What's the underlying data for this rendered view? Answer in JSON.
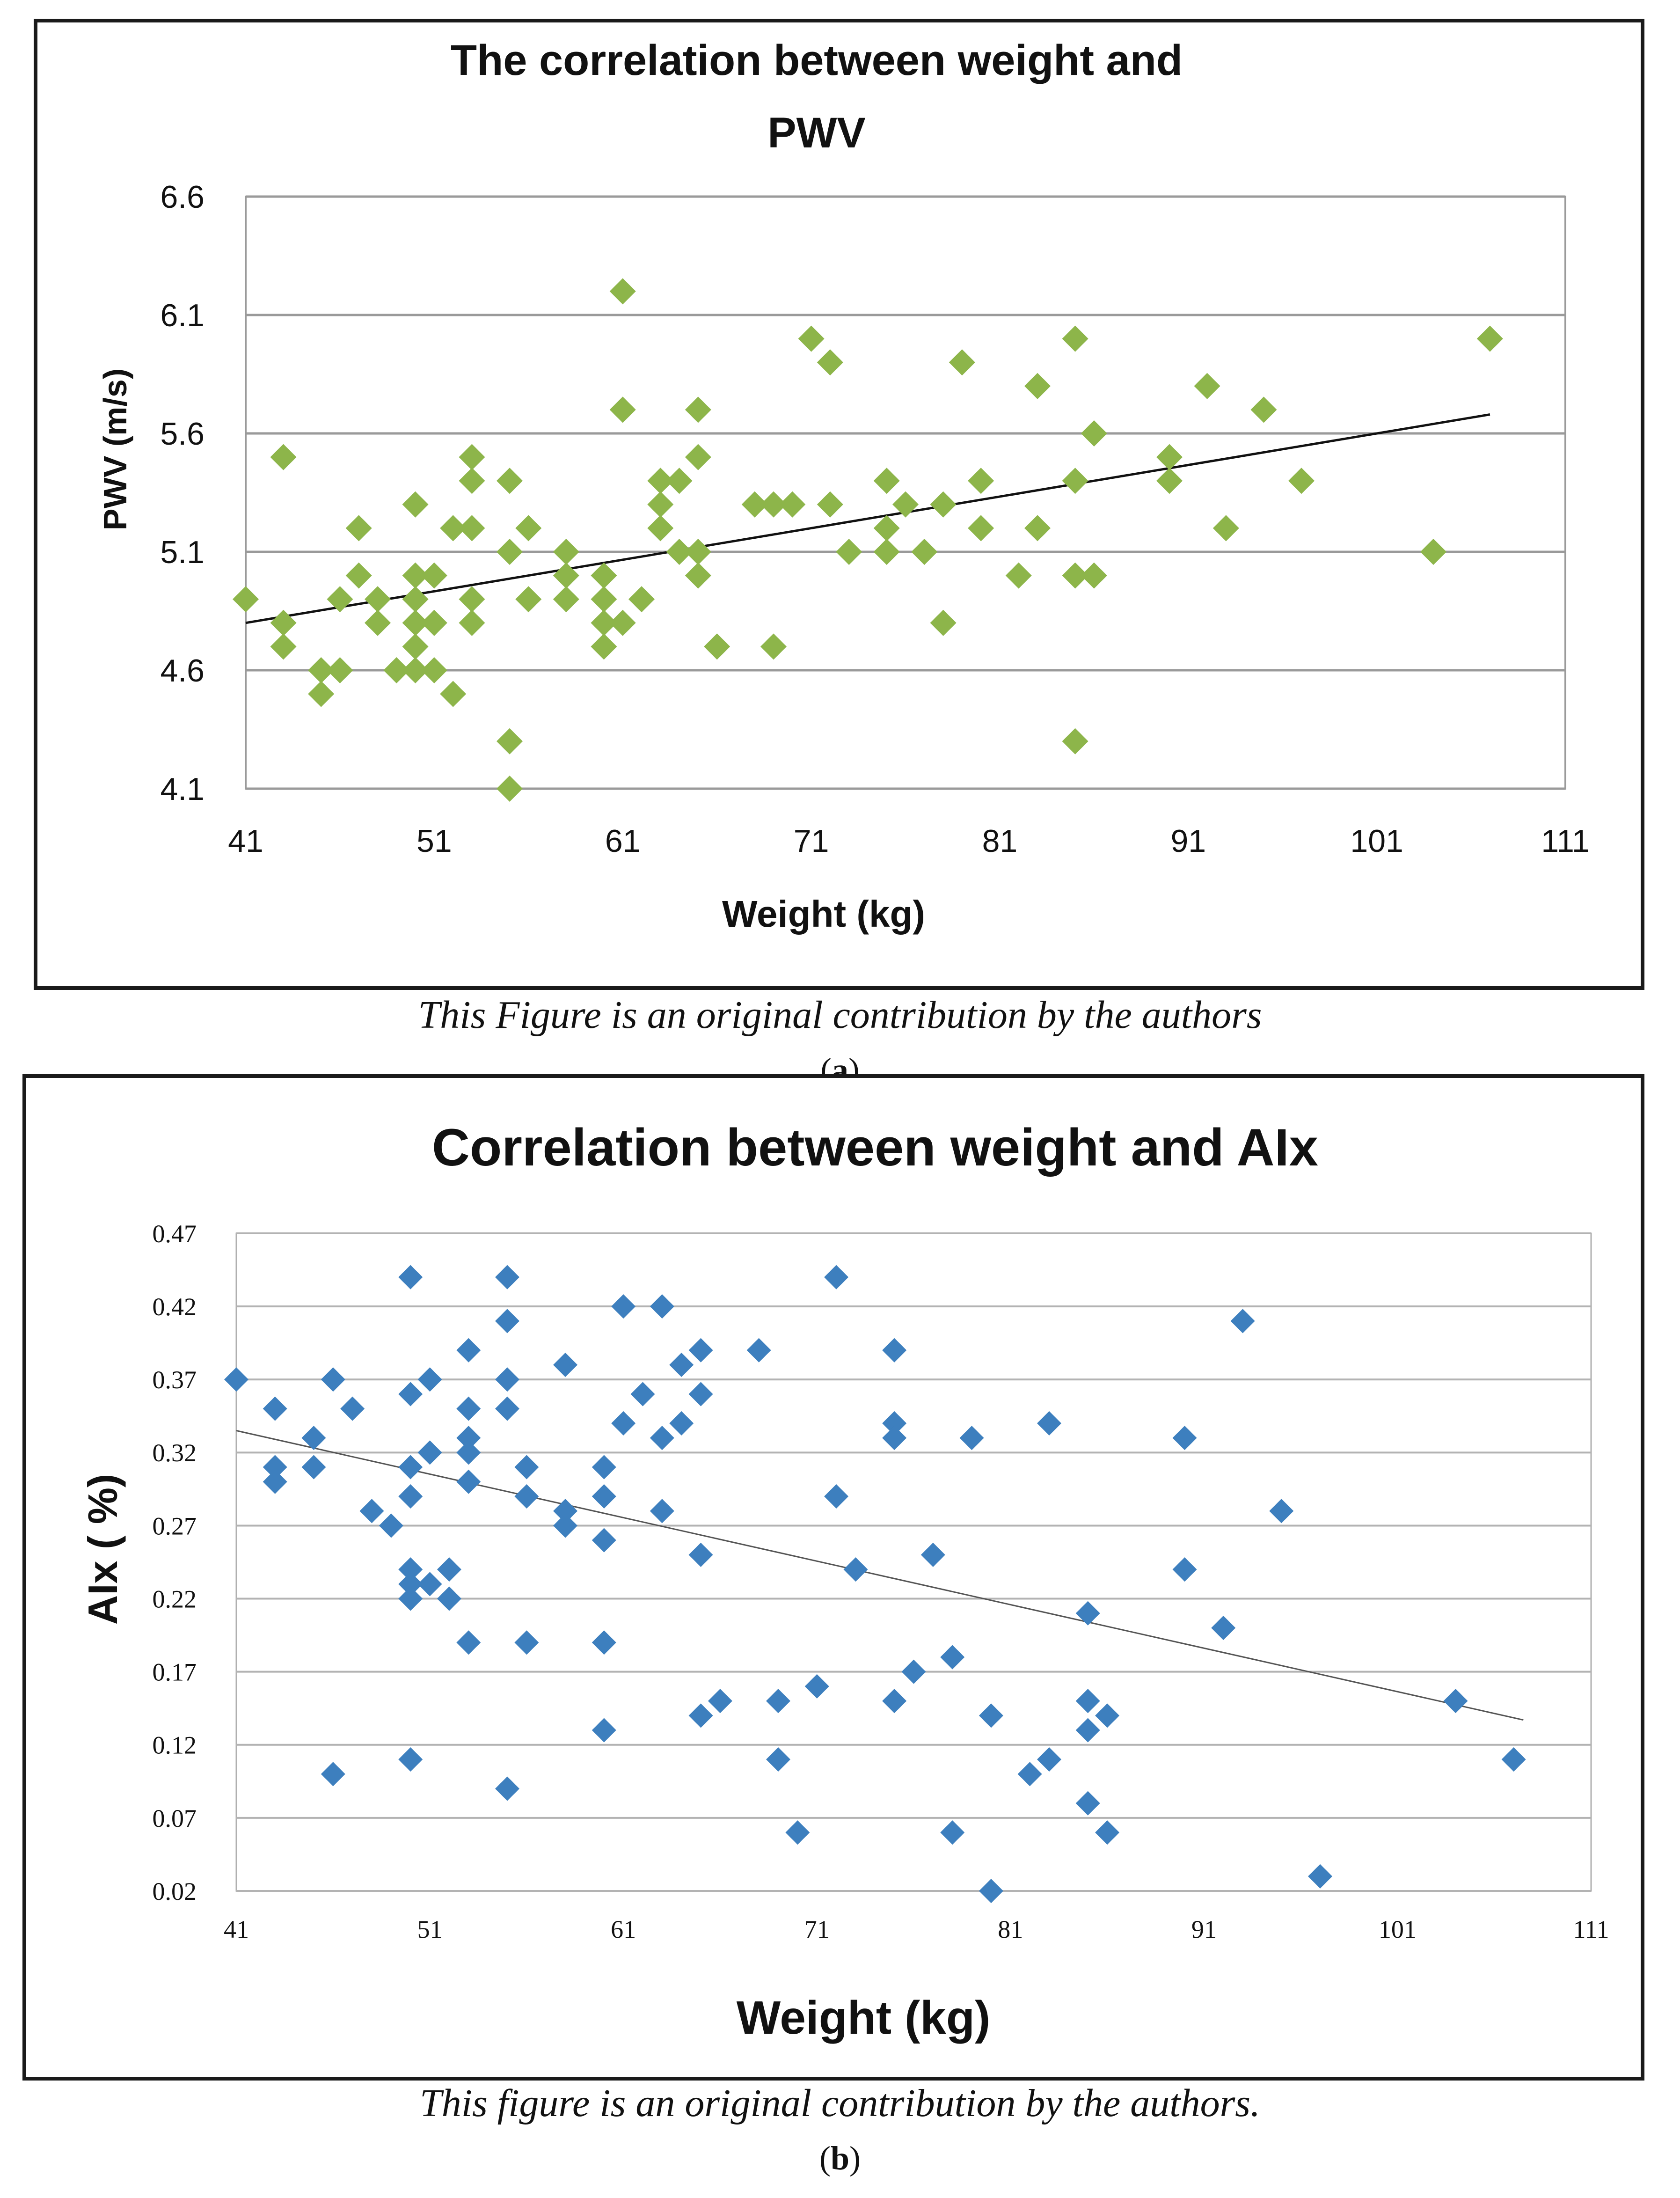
{
  "chart_data": [
    {
      "type": "scatter",
      "title_line1": "The correlation between weight and",
      "title_line2": "PWV",
      "xlabel": "Weight (kg)",
      "ylabel": "PWV (m/s)",
      "xlim": [
        41,
        111
      ],
      "ylim": [
        4.1,
        6.6
      ],
      "xticks": [
        "41",
        "51",
        "61",
        "71",
        "81",
        "91",
        "101",
        "111"
      ],
      "yticks": [
        "4.1",
        "4.6",
        "5.1",
        "5.6",
        "6.1",
        "6.6"
      ],
      "marker_color": "#8db54a",
      "trendline": {
        "x": [
          41,
          107
        ],
        "y": [
          4.8,
          5.68
        ]
      },
      "points": [
        [
          41,
          4.9
        ],
        [
          43,
          5.5
        ],
        [
          43,
          4.8
        ],
        [
          43,
          4.7
        ],
        [
          45,
          4.6
        ],
        [
          45,
          4.5
        ],
        [
          46,
          4.9
        ],
        [
          46,
          4.6
        ],
        [
          47,
          5.2
        ],
        [
          47,
          5.0
        ],
        [
          48,
          4.9
        ],
        [
          48,
          4.8
        ],
        [
          49,
          4.6
        ],
        [
          50,
          5.3
        ],
        [
          50,
          5.0
        ],
        [
          50,
          4.9
        ],
        [
          50,
          4.8
        ],
        [
          50,
          4.7
        ],
        [
          50,
          4.6
        ],
        [
          51,
          5.0
        ],
        [
          51,
          4.8
        ],
        [
          51,
          4.6
        ],
        [
          52,
          5.2
        ],
        [
          52,
          4.5
        ],
        [
          53,
          5.5
        ],
        [
          53,
          5.4
        ],
        [
          53,
          5.2
        ],
        [
          53,
          4.9
        ],
        [
          53,
          4.8
        ],
        [
          55,
          5.4
        ],
        [
          55,
          5.1
        ],
        [
          55,
          4.3
        ],
        [
          55,
          4.1
        ],
        [
          56,
          5.2
        ],
        [
          56,
          4.9
        ],
        [
          58,
          5.1
        ],
        [
          58,
          5.0
        ],
        [
          58,
          4.9
        ],
        [
          60,
          5.0
        ],
        [
          60,
          4.9
        ],
        [
          60,
          4.8
        ],
        [
          60,
          4.7
        ],
        [
          61,
          6.2
        ],
        [
          61,
          5.7
        ],
        [
          61,
          4.8
        ],
        [
          62,
          4.9
        ],
        [
          63,
          5.4
        ],
        [
          63,
          5.3
        ],
        [
          63,
          5.2
        ],
        [
          64,
          5.4
        ],
        [
          64,
          5.1
        ],
        [
          65,
          5.7
        ],
        [
          65,
          5.5
        ],
        [
          65,
          5.1
        ],
        [
          65,
          5.0
        ],
        [
          66,
          4.7
        ],
        [
          68,
          5.3
        ],
        [
          69,
          5.3
        ],
        [
          69,
          4.7
        ],
        [
          70,
          5.3
        ],
        [
          71,
          6.0
        ],
        [
          72,
          5.9
        ],
        [
          72,
          5.3
        ],
        [
          73,
          5.1
        ],
        [
          75,
          5.4
        ],
        [
          75,
          5.2
        ],
        [
          75,
          5.1
        ],
        [
          76,
          5.3
        ],
        [
          77,
          5.1
        ],
        [
          78,
          5.3
        ],
        [
          78,
          4.8
        ],
        [
          79,
          5.9
        ],
        [
          80,
          5.4
        ],
        [
          80,
          5.2
        ],
        [
          82,
          5.0
        ],
        [
          83,
          5.8
        ],
        [
          83,
          5.2
        ],
        [
          85,
          6.0
        ],
        [
          85,
          5.4
        ],
        [
          85,
          5.0
        ],
        [
          85,
          4.3
        ],
        [
          86,
          5.6
        ],
        [
          86,
          5.0
        ],
        [
          90,
          5.5
        ],
        [
          90,
          5.4
        ],
        [
          92,
          5.8
        ],
        [
          93,
          5.2
        ],
        [
          95,
          5.7
        ],
        [
          97,
          5.4
        ],
        [
          104,
          5.1
        ],
        [
          107,
          6.0
        ]
      ]
    },
    {
      "type": "scatter",
      "title": "Correlation between weight and AIx",
      "xlabel": "Weight (kg)",
      "ylabel": "AIx ( %)",
      "xlim": [
        41,
        111
      ],
      "ylim": [
        0.02,
        0.47
      ],
      "xticks": [
        "41",
        "51",
        "61",
        "71",
        "81",
        "91",
        "101",
        "111"
      ],
      "yticks": [
        "0.02",
        "0.07",
        "0.12",
        "0.17",
        "0.22",
        "0.27",
        "0.32",
        "0.37",
        "0.42",
        "0.47"
      ],
      "marker_color": "#3d7fbe",
      "trendline": {
        "x": [
          41,
          107.5
        ],
        "y": [
          0.335,
          0.137
        ]
      },
      "points": [
        [
          41,
          0.37
        ],
        [
          43,
          0.35
        ],
        [
          43,
          0.31
        ],
        [
          43,
          0.3
        ],
        [
          45,
          0.33
        ],
        [
          45,
          0.31
        ],
        [
          46,
          0.37
        ],
        [
          46,
          0.1
        ],
        [
          47,
          0.35
        ],
        [
          48,
          0.28
        ],
        [
          49,
          0.27
        ],
        [
          50,
          0.44
        ],
        [
          50,
          0.36
        ],
        [
          50,
          0.31
        ],
        [
          50,
          0.29
        ],
        [
          50,
          0.24
        ],
        [
          50,
          0.23
        ],
        [
          50,
          0.22
        ],
        [
          50,
          0.11
        ],
        [
          51,
          0.37
        ],
        [
          51,
          0.32
        ],
        [
          51,
          0.23
        ],
        [
          52,
          0.24
        ],
        [
          52,
          0.22
        ],
        [
          53,
          0.39
        ],
        [
          53,
          0.35
        ],
        [
          53,
          0.33
        ],
        [
          53,
          0.32
        ],
        [
          53,
          0.3
        ],
        [
          53,
          0.19
        ],
        [
          55,
          0.44
        ],
        [
          55,
          0.41
        ],
        [
          55,
          0.37
        ],
        [
          55,
          0.35
        ],
        [
          55,
          0.09
        ],
        [
          56,
          0.31
        ],
        [
          56,
          0.29
        ],
        [
          56,
          0.19
        ],
        [
          58,
          0.38
        ],
        [
          58,
          0.28
        ],
        [
          58,
          0.27
        ],
        [
          60,
          0.31
        ],
        [
          60,
          0.29
        ],
        [
          60,
          0.26
        ],
        [
          60,
          0.19
        ],
        [
          60,
          0.13
        ],
        [
          61,
          0.42
        ],
        [
          61,
          0.34
        ],
        [
          62,
          0.36
        ],
        [
          63,
          0.42
        ],
        [
          63,
          0.33
        ],
        [
          63,
          0.28
        ],
        [
          64,
          0.38
        ],
        [
          64,
          0.34
        ],
        [
          65,
          0.39
        ],
        [
          65,
          0.36
        ],
        [
          65,
          0.25
        ],
        [
          65,
          0.14
        ],
        [
          66,
          0.15
        ],
        [
          68,
          0.39
        ],
        [
          69,
          0.15
        ],
        [
          69,
          0.11
        ],
        [
          70,
          0.06
        ],
        [
          71,
          0.16
        ],
        [
          72,
          0.44
        ],
        [
          72,
          0.29
        ],
        [
          73,
          0.24
        ],
        [
          75,
          0.39
        ],
        [
          75,
          0.34
        ],
        [
          75,
          0.33
        ],
        [
          75,
          0.15
        ],
        [
          76,
          0.17
        ],
        [
          77,
          0.25
        ],
        [
          78,
          0.18
        ],
        [
          78,
          0.06
        ],
        [
          79,
          0.33
        ],
        [
          80,
          0.14
        ],
        [
          80,
          0.02
        ],
        [
          82,
          0.1
        ],
        [
          83,
          0.34
        ],
        [
          83,
          0.11
        ],
        [
          85,
          0.21
        ],
        [
          85,
          0.15
        ],
        [
          85,
          0.13
        ],
        [
          85,
          0.08
        ],
        [
          86,
          0.14
        ],
        [
          86,
          0.06
        ],
        [
          90,
          0.33
        ],
        [
          90,
          0.24
        ],
        [
          92,
          0.2
        ],
        [
          93,
          0.41
        ],
        [
          95,
          0.28
        ],
        [
          97,
          0.03
        ],
        [
          104,
          0.15
        ],
        [
          107,
          0.11
        ]
      ]
    }
  ],
  "captions": {
    "a": "This Figure is an original contribution by the authors",
    "a_label_open": "(",
    "a_label_letter": "a",
    "a_label_close": ")",
    "b": "This figure is an original contribution by the authors.",
    "b_label_open": "(",
    "b_label_letter": "b",
    "b_label_close": ")"
  }
}
